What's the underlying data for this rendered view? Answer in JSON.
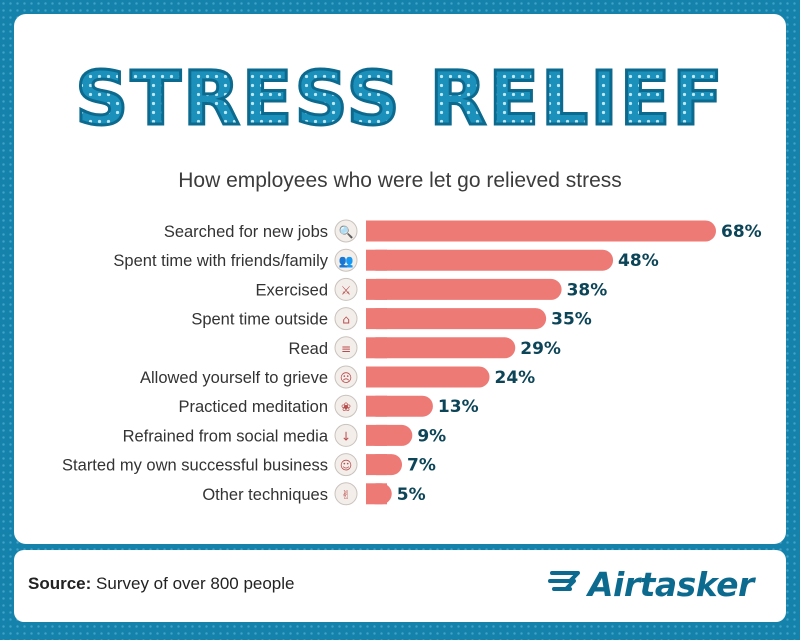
{
  "title": "STRESS RELIEF",
  "subtitle": "How employees who were let go relieved stress",
  "source_label": "Source:",
  "source_text": "Survey of over 800 people",
  "brand": "Airtasker",
  "colors": {
    "bar": "#ee7a76",
    "frame": "#1582ac",
    "brand": "#0d6a8f"
  },
  "chart_data": {
    "type": "bar",
    "orientation": "horizontal",
    "title": "STRESS RELIEF",
    "subtitle": "How employees who were let go relieved stress",
    "categories": [
      "Searched for new jobs",
      "Spent time with friends/family",
      "Exercised",
      "Spent time outside",
      "Read",
      "Allowed yourself to grieve",
      "Practiced meditation",
      "Refrained from social media",
      "Started my own successful business",
      "Other techniques"
    ],
    "values": [
      68,
      48,
      38,
      35,
      29,
      24,
      13,
      9,
      7,
      5
    ],
    "value_labels": [
      "68%",
      "48%",
      "38%",
      "35%",
      "29%",
      "24%",
      "13%",
      "9%",
      "7%",
      "5%"
    ],
    "icons": [
      "briefcase-search-icon",
      "people-icon",
      "dumbbell-icon",
      "backpack-icon",
      "book-icon",
      "crying-face-icon",
      "meditation-icon",
      "thumbs-down-icon",
      "businessman-icon",
      "peace-hand-icon"
    ],
    "unit": "%",
    "xlim": [
      0,
      68
    ],
    "grid": false,
    "legend": "none"
  }
}
